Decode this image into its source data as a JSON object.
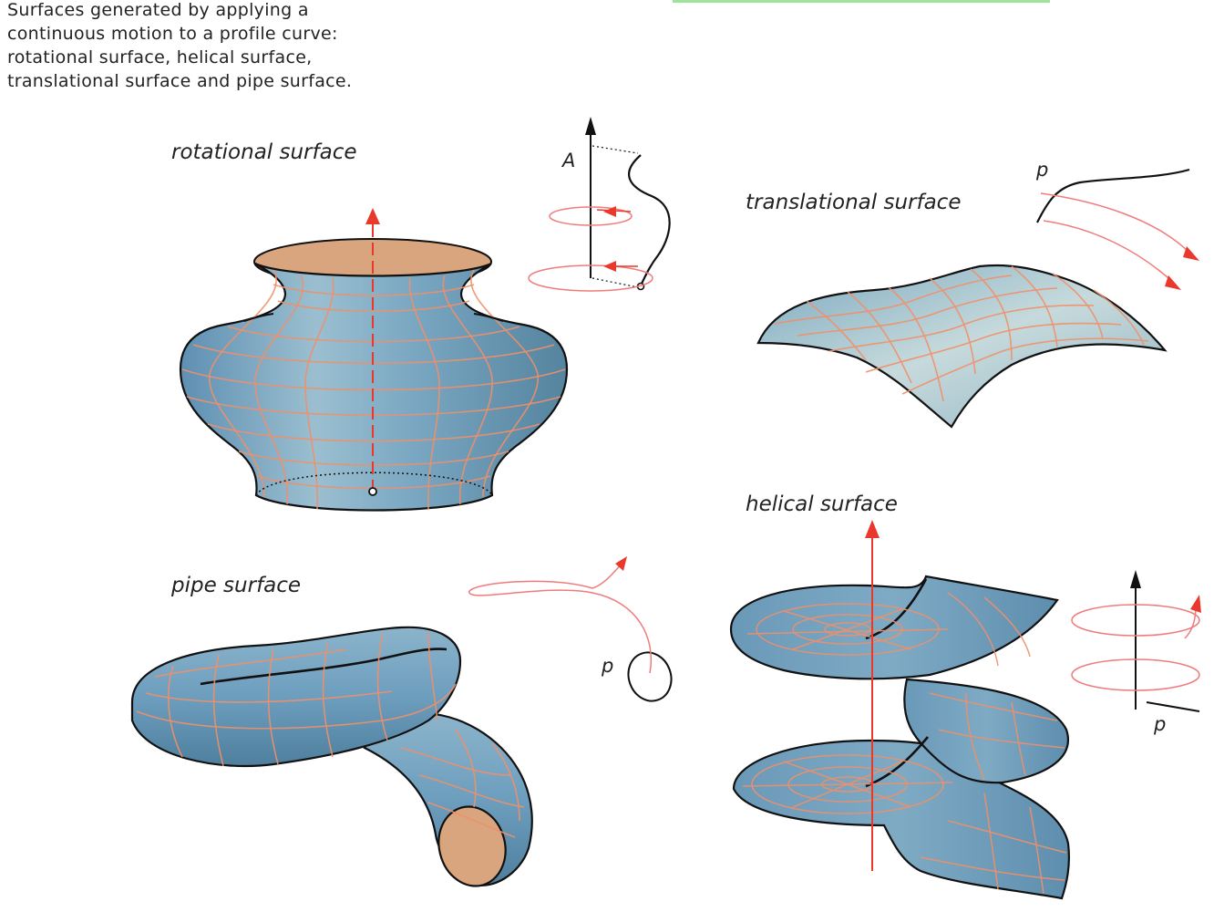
{
  "caption": {
    "lines": [
      "Surfaces generated by applying a",
      "continuous motion to a profile curve:",
      "rotational surface, helical surface,",
      "translational surface and pipe surface."
    ]
  },
  "figures": {
    "rotational": {
      "title": "rotational surface",
      "axis_label": "A"
    },
    "translational": {
      "title": "translational surface",
      "profile_label": "p"
    },
    "pipe": {
      "title": "pipe surface",
      "profile_label": "p"
    },
    "helical": {
      "title": "helical surface",
      "profile_label": "p"
    }
  },
  "colors": {
    "surface": "#6f9fbf",
    "surface_light": "#bcd3d8",
    "grid": "#f0906a",
    "axis_red": "#e8392c",
    "interior": "#d8a57e",
    "outline": "#111111"
  }
}
